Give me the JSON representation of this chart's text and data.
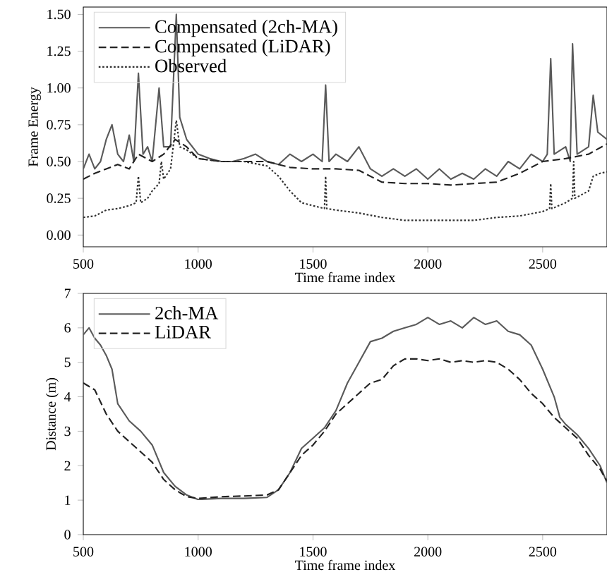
{
  "chart_data": [
    {
      "type": "line",
      "xlabel": "Time frame index",
      "ylabel": "Frame Energy",
      "xlim": [
        500,
        2780
      ],
      "ylim": [
        -0.08,
        1.55
      ],
      "xticks": [
        500,
        1000,
        1500,
        2000,
        2500
      ],
      "yticks": [
        {
          "value": 0,
          "label": "0.00"
        },
        {
          "value": 0.25,
          "label": "0.25"
        },
        {
          "value": 0.5,
          "label": "0.50"
        },
        {
          "value": 0.75,
          "label": "0.75"
        },
        {
          "value": 1.0,
          "label": "1.00"
        },
        {
          "value": 1.25,
          "label": "1.25"
        },
        {
          "value": 1.5,
          "label": "1.50"
        }
      ],
      "legend": "top left",
      "grid": false,
      "series": [
        {
          "name": "Compensated (2ch-MA)",
          "color": "#5a5a5a",
          "line_style": "solid",
          "x": [
            500,
            525,
            550,
            575,
            600,
            625,
            650,
            675,
            700,
            720,
            740,
            760,
            780,
            800,
            830,
            850,
            880,
            905,
            920,
            950,
            1000,
            1050,
            1100,
            1150,
            1200,
            1250,
            1300,
            1350,
            1400,
            1450,
            1500,
            1540,
            1555,
            1570,
            1600,
            1650,
            1700,
            1750,
            1800,
            1850,
            1900,
            1950,
            2000,
            2050,
            2100,
            2150,
            2200,
            2250,
            2300,
            2350,
            2400,
            2450,
            2500,
            2520,
            2535,
            2550,
            2600,
            2620,
            2630,
            2650,
            2700,
            2720,
            2740,
            2780
          ],
          "values": [
            0.45,
            0.55,
            0.45,
            0.5,
            0.65,
            0.75,
            0.55,
            0.5,
            0.68,
            0.5,
            1.1,
            0.55,
            0.6,
            0.5,
            1.0,
            0.6,
            0.6,
            1.5,
            0.8,
            0.65,
            0.55,
            0.52,
            0.5,
            0.5,
            0.52,
            0.55,
            0.5,
            0.48,
            0.55,
            0.5,
            0.55,
            0.5,
            1.02,
            0.5,
            0.55,
            0.5,
            0.6,
            0.45,
            0.4,
            0.45,
            0.4,
            0.45,
            0.38,
            0.45,
            0.38,
            0.42,
            0.38,
            0.45,
            0.4,
            0.5,
            0.45,
            0.55,
            0.5,
            0.55,
            1.2,
            0.55,
            0.6,
            0.5,
            1.3,
            0.55,
            0.6,
            0.95,
            0.7,
            0.65
          ]
        },
        {
          "name": "Compensated (LiDAR)",
          "color": "#222222",
          "line_style": "dashed",
          "x": [
            500,
            550,
            600,
            650,
            700,
            740,
            800,
            850,
            900,
            950,
            1000,
            1100,
            1200,
            1300,
            1350,
            1400,
            1500,
            1600,
            1700,
            1750,
            1800,
            1900,
            2000,
            2100,
            2200,
            2300,
            2400,
            2500,
            2600,
            2700,
            2780
          ],
          "values": [
            0.38,
            0.42,
            0.45,
            0.48,
            0.45,
            0.55,
            0.5,
            0.55,
            0.65,
            0.6,
            0.52,
            0.5,
            0.5,
            0.5,
            0.48,
            0.46,
            0.45,
            0.45,
            0.44,
            0.4,
            0.36,
            0.35,
            0.35,
            0.34,
            0.35,
            0.36,
            0.42,
            0.5,
            0.52,
            0.55,
            0.62
          ]
        },
        {
          "name": "Observed",
          "color": "#303030",
          "line_style": "dotted",
          "x": [
            500,
            550,
            600,
            650,
            700,
            730,
            740,
            750,
            780,
            800,
            830,
            840,
            850,
            880,
            905,
            920,
            950,
            1000,
            1100,
            1200,
            1300,
            1350,
            1400,
            1450,
            1500,
            1550,
            1555,
            1560,
            1600,
            1700,
            1800,
            1900,
            2000,
            2100,
            2200,
            2300,
            2400,
            2500,
            2530,
            2535,
            2540,
            2600,
            2630,
            2635,
            2640,
            2700,
            2720,
            2750,
            2780
          ],
          "values": [
            0.12,
            0.13,
            0.17,
            0.18,
            0.2,
            0.22,
            0.4,
            0.22,
            0.25,
            0.3,
            0.35,
            0.5,
            0.38,
            0.45,
            0.78,
            0.6,
            0.58,
            0.52,
            0.5,
            0.5,
            0.47,
            0.4,
            0.3,
            0.22,
            0.2,
            0.18,
            0.4,
            0.18,
            0.17,
            0.15,
            0.12,
            0.1,
            0.1,
            0.1,
            0.1,
            0.12,
            0.13,
            0.16,
            0.18,
            0.35,
            0.18,
            0.22,
            0.25,
            0.5,
            0.25,
            0.3,
            0.4,
            0.42,
            0.43
          ]
        }
      ]
    },
    {
      "type": "line",
      "xlabel": "Time frame index",
      "ylabel": "Distance (m)",
      "xlim": [
        500,
        2780
      ],
      "ylim": [
        0,
        7
      ],
      "xticks": [
        500,
        1000,
        1500,
        2000,
        2500
      ],
      "yticks": [
        0,
        1,
        2,
        3,
        4,
        5,
        6,
        7
      ],
      "legend": "top left",
      "grid": false,
      "series": [
        {
          "name": "2ch-MA",
          "color": "#5a5a5a",
          "line_style": "solid",
          "x": [
            500,
            525,
            550,
            575,
            600,
            625,
            650,
            700,
            750,
            800,
            850,
            900,
            950,
            1000,
            1100,
            1200,
            1300,
            1350,
            1400,
            1450,
            1500,
            1550,
            1600,
            1650,
            1700,
            1750,
            1800,
            1850,
            1900,
            1950,
            2000,
            2050,
            2100,
            2150,
            2200,
            2250,
            2300,
            2350,
            2400,
            2450,
            2500,
            2550,
            2575,
            2600,
            2650,
            2700,
            2750,
            2780
          ],
          "values": [
            5.8,
            6.0,
            5.7,
            5.5,
            5.2,
            4.8,
            3.8,
            3.3,
            3.0,
            2.6,
            1.8,
            1.4,
            1.15,
            1.02,
            1.05,
            1.05,
            1.08,
            1.3,
            1.8,
            2.5,
            2.8,
            3.1,
            3.6,
            4.4,
            5.0,
            5.6,
            5.7,
            5.9,
            6.0,
            6.1,
            6.3,
            6.1,
            6.2,
            6.0,
            6.3,
            6.1,
            6.2,
            5.9,
            5.8,
            5.5,
            4.8,
            4.0,
            3.4,
            3.2,
            2.9,
            2.5,
            2.0,
            1.5
          ]
        },
        {
          "name": "LiDAR",
          "color": "#222222",
          "line_style": "dashed",
          "x": [
            500,
            550,
            600,
            650,
            700,
            750,
            800,
            850,
            900,
            950,
            1000,
            1100,
            1200,
            1300,
            1350,
            1400,
            1450,
            1500,
            1550,
            1600,
            1650,
            1700,
            1750,
            1800,
            1850,
            1900,
            1950,
            2000,
            2050,
            2100,
            2150,
            2200,
            2250,
            2300,
            2350,
            2400,
            2450,
            2500,
            2550,
            2600,
            2650,
            2700,
            2750,
            2780
          ],
          "values": [
            4.4,
            4.2,
            3.5,
            3.0,
            2.7,
            2.4,
            2.1,
            1.6,
            1.3,
            1.1,
            1.05,
            1.1,
            1.12,
            1.15,
            1.3,
            1.8,
            2.3,
            2.6,
            3.0,
            3.5,
            3.8,
            4.1,
            4.4,
            4.5,
            4.9,
            5.1,
            5.1,
            5.05,
            5.1,
            5.0,
            5.05,
            5.0,
            5.05,
            5.0,
            4.8,
            4.5,
            4.1,
            3.8,
            3.4,
            3.1,
            2.8,
            2.3,
            1.9,
            1.55
          ]
        }
      ]
    }
  ]
}
